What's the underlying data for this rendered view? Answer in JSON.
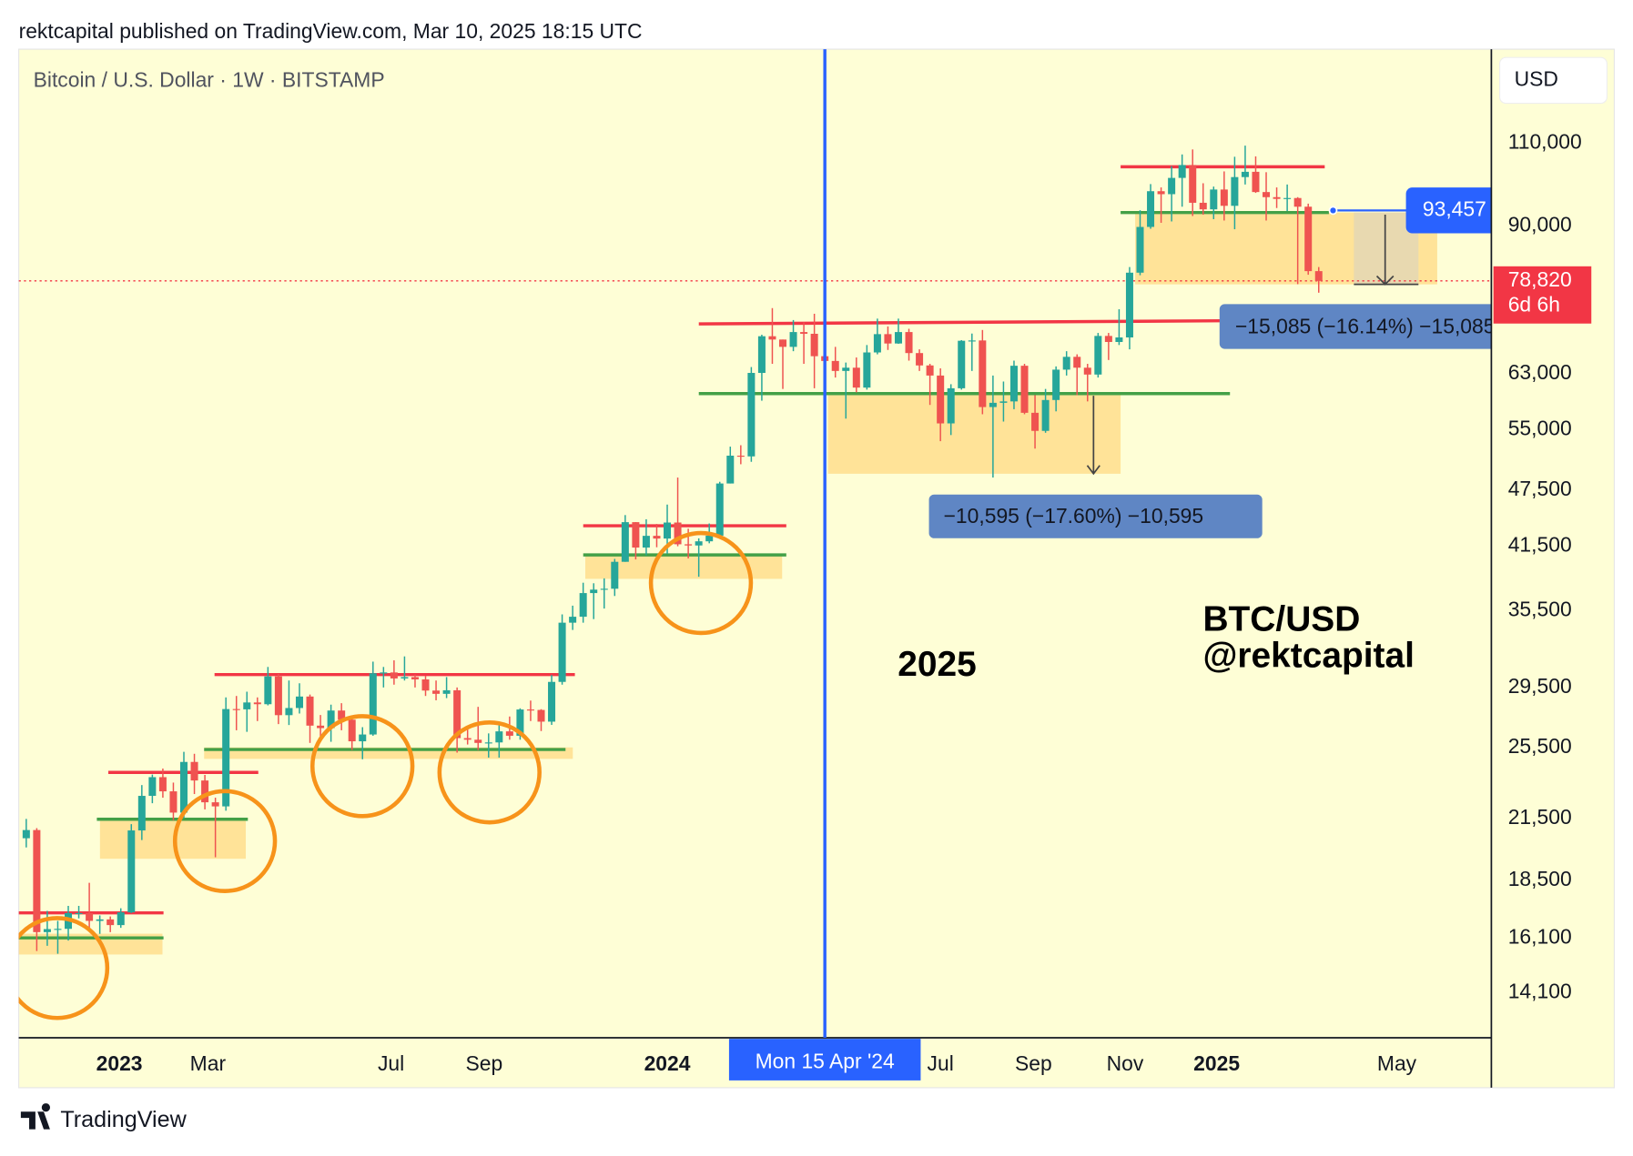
{
  "header": {
    "publisher": "rektcapital published on TradingView.com, Mar 10, 2025 18:15 UTC",
    "brand": "TradingView"
  },
  "chart_data": {
    "type": "candlestick",
    "symbol": "Bitcoin / U.S. Dollar · 1W · BITSTAMP",
    "currency": "USD",
    "log_scale": true,
    "up_color": "#26a69a",
    "down_color": "#ef5350",
    "x": [
      "2022-10-31",
      "2022-11-07",
      "2022-11-14",
      "2022-11-21",
      "2022-11-28",
      "2022-12-05",
      "2022-12-12",
      "2022-12-19",
      "2022-12-26",
      "2023-01-02",
      "2023-01-09",
      "2023-01-16",
      "2023-01-23",
      "2023-01-30",
      "2023-02-06",
      "2023-02-13",
      "2023-02-20",
      "2023-02-27",
      "2023-03-06",
      "2023-03-13",
      "2023-03-20",
      "2023-03-27",
      "2023-04-03",
      "2023-04-10",
      "2023-04-17",
      "2023-04-24",
      "2023-05-01",
      "2023-05-08",
      "2023-05-15",
      "2023-05-22",
      "2023-05-29",
      "2023-06-05",
      "2023-06-12",
      "2023-06-19",
      "2023-06-26",
      "2023-07-03",
      "2023-07-10",
      "2023-07-17",
      "2023-07-24",
      "2023-07-31",
      "2023-08-07",
      "2023-08-14",
      "2023-08-21",
      "2023-08-28",
      "2023-09-04",
      "2023-09-11",
      "2023-09-18",
      "2023-09-25",
      "2023-10-02",
      "2023-10-09",
      "2023-10-16",
      "2023-10-23",
      "2023-10-30",
      "2023-11-06",
      "2023-11-13",
      "2023-11-20",
      "2023-11-27",
      "2023-12-04",
      "2023-12-11",
      "2023-12-18",
      "2023-12-25",
      "2024-01-01",
      "2024-01-08",
      "2024-01-15",
      "2024-01-22",
      "2024-01-29",
      "2024-02-05",
      "2024-02-12",
      "2024-02-19",
      "2024-02-26",
      "2024-03-04",
      "2024-03-11",
      "2024-03-18",
      "2024-03-25",
      "2024-04-01",
      "2024-04-08",
      "2024-04-15",
      "2024-04-22",
      "2024-04-29",
      "2024-05-06",
      "2024-05-13",
      "2024-05-20",
      "2024-05-27",
      "2024-06-03",
      "2024-06-10",
      "2024-06-17",
      "2024-06-24",
      "2024-07-01",
      "2024-07-08",
      "2024-07-15",
      "2024-07-22",
      "2024-07-29",
      "2024-08-05",
      "2024-08-12",
      "2024-08-19",
      "2024-08-26",
      "2024-09-02",
      "2024-09-09",
      "2024-09-16",
      "2024-09-23",
      "2024-09-30",
      "2024-10-07",
      "2024-10-14",
      "2024-10-21",
      "2024-10-28",
      "2024-11-04",
      "2024-11-11",
      "2024-11-18",
      "2024-11-25",
      "2024-12-02",
      "2024-12-09",
      "2024-12-16",
      "2024-12-23",
      "2024-12-30",
      "2025-01-06",
      "2025-01-13",
      "2025-01-20",
      "2025-01-27",
      "2025-02-03",
      "2025-02-10",
      "2025-02-17",
      "2025-02-24",
      "2025-03-03",
      "2025-03-10"
    ],
    "open": [
      20490,
      20900,
      16330,
      16450,
      16460,
      17100,
      17100,
      16780,
      16840,
      16610,
      17130,
      20880,
      22700,
      23750,
      22950,
      21800,
      24640,
      23560,
      22350,
      22130,
      28000,
      27980,
      28450,
      28330,
      30300,
      27590,
      28070,
      28860,
      26900,
      26740,
      27900,
      27290,
      25900,
      26330,
      30530,
      30590,
      30150,
      30250,
      30080,
      29280,
      29050,
      29300,
      26100,
      26000,
      25800,
      25830,
      26530,
      26250,
      27970,
      27940,
      27160,
      29900,
      34500,
      35000,
      37060,
      37370,
      37450,
      39970,
      43990,
      41370,
      42560,
      42280,
      43950,
      41700,
      41580,
      42000,
      42580,
      48300,
      51660,
      51570,
      63100,
      68950,
      68400,
      67200,
      69650,
      69360,
      65700,
      64950,
      63400,
      63900,
      60900,
      66300,
      69300,
      67750,
      69650,
      66200,
      64250,
      62700,
      55850,
      60800,
      68200,
      68250,
      58100,
      58700,
      58900,
      64200,
      57300,
      54850,
      59100,
      63600,
      65600,
      63900,
      62850,
      69000,
      68000,
      68750,
      80400,
      89800,
      97900,
      97200,
      101100,
      104300,
      95200,
      93700,
      98300,
      94500,
      101300,
      102600,
      97700,
      96500,
      96100,
      96300,
      94300,
      80700
    ],
    "high": [
      21470,
      21000,
      17190,
      16780,
      17400,
      17400,
      18400,
      17000,
      16960,
      17300,
      21200,
      23300,
      23900,
      24250,
      23440,
      25250,
      25130,
      23880,
      22600,
      28800,
      28900,
      29200,
      28800,
      31000,
      30480,
      30000,
      29800,
      29000,
      27600,
      28300,
      28400,
      27400,
      26800,
      31400,
      31000,
      31500,
      31800,
      30440,
      30330,
      30000,
      30250,
      29500,
      26800,
      28150,
      26400,
      27000,
      27500,
      28050,
      28580,
      27990,
      30400,
      35200,
      35950,
      38000,
      37950,
      38400,
      40250,
      44750,
      44000,
      44300,
      43800,
      45900,
      49000,
      43300,
      42300,
      43850,
      48500,
      52800,
      52980,
      64000,
      69200,
      73800,
      68400,
      71700,
      71300,
      72800,
      66900,
      67200,
      64700,
      65500,
      67500,
      71950,
      70600,
      71950,
      70200,
      66800,
      64500,
      63800,
      61400,
      68300,
      69400,
      70000,
      62700,
      61800,
      65000,
      64500,
      59800,
      60700,
      64100,
      66500,
      66000,
      64500,
      69500,
      69500,
      73600,
      81500,
      93500,
      99600,
      98800,
      104000,
      107000,
      108300,
      99800,
      99000,
      102700,
      106400,
      109300,
      106500,
      102500,
      98800,
      99500,
      96500,
      95000,
      81500
    ],
    "low": [
      20040,
      15600,
      15800,
      15500,
      16000,
      16880,
      16500,
      16260,
      16330,
      16500,
      17100,
      20400,
      22300,
      22600,
      21400,
      21500,
      22800,
      21970,
      19570,
      21900,
      26600,
      26500,
      27200,
      28250,
      27000,
      26940,
      27700,
      25800,
      26150,
      25870,
      26600,
      25360,
      24800,
      26250,
      29500,
      29700,
      30000,
      29500,
      28900,
      28600,
      28750,
      25200,
      25700,
      25350,
      24900,
      24900,
      26000,
      26000,
      27200,
      26550,
      26950,
      29700,
      33900,
      34500,
      34800,
      35700,
      36800,
      39970,
      40200,
      40600,
      41400,
      40750,
      41500,
      40300,
      38550,
      41800,
      42300,
      48300,
      50600,
      50900,
      59000,
      64500,
      60700,
      66500,
      64500,
      60800,
      59600,
      62400,
      56500,
      60200,
      60600,
      66000,
      66700,
      67700,
      65000,
      63400,
      58400,
      53500,
      54300,
      60600,
      63400,
      57100,
      49000,
      56100,
      57800,
      57100,
      52550,
      54600,
      57500,
      62700,
      59800,
      58900,
      62400,
      65100,
      67500,
      66800,
      79900,
      89400,
      90700,
      91000,
      94300,
      92200,
      92500,
      91500,
      91200,
      89300,
      99500,
      97500,
      91200,
      94000,
      93300,
      78200,
      80000,
      76600
    ],
    "close": [
      20900,
      16330,
      16450,
      16460,
      17100,
      17100,
      16780,
      16840,
      16610,
      17130,
      20880,
      22700,
      23750,
      22950,
      21800,
      24640,
      23560,
      22350,
      22130,
      28000,
      27980,
      28450,
      28330,
      30300,
      27590,
      28070,
      28860,
      26900,
      26740,
      27900,
      27290,
      25900,
      26330,
      30530,
      30590,
      30150,
      30250,
      30080,
      29280,
      29050,
      29300,
      26100,
      26000,
      25800,
      25830,
      26530,
      26250,
      27970,
      27940,
      27160,
      29900,
      34500,
      35000,
      37060,
      37370,
      37450,
      39970,
      43990,
      41370,
      42560,
      42280,
      43950,
      41700,
      41580,
      42000,
      42580,
      48300,
      51660,
      51570,
      63100,
      68950,
      68400,
      67200,
      69650,
      69360,
      65700,
      64950,
      63400,
      63900,
      60900,
      66300,
      69300,
      67750,
      69650,
      66200,
      64250,
      62700,
      55850,
      60800,
      68200,
      68250,
      58100,
      58700,
      58900,
      64200,
      57300,
      54850,
      59100,
      63600,
      65600,
      63900,
      62850,
      69000,
      68000,
      68750,
      80400,
      89800,
      97900,
      97200,
      101100,
      104300,
      95200,
      93700,
      98300,
      94500,
      101300,
      102600,
      97700,
      96500,
      96100,
      96300,
      94300,
      80700,
      78820
    ],
    "xlim": [
      "2022-10-26",
      "2025-07-03"
    ],
    "xticks": [
      {
        "value": "2023-01-01",
        "label": "2023"
      },
      {
        "value": "2023-03-01",
        "label": "Mar"
      },
      {
        "value": "2023-07-01",
        "label": "Jul"
      },
      {
        "value": "2023-09-01",
        "label": "Sep"
      },
      {
        "value": "2024-01-01",
        "label": "2024"
      },
      {
        "value": "2024-07-01",
        "label": "Jul"
      },
      {
        "value": "2024-09-01",
        "label": "Sep"
      },
      {
        "value": "2024-11-01",
        "label": "Nov"
      },
      {
        "value": "2025-01-01",
        "label": "2025"
      },
      {
        "value": "2025-05-01",
        "label": "May"
      }
    ],
    "ylim": [
      12650,
      138000
    ],
    "yticks": [
      {
        "value": 110000,
        "label": "110,000"
      },
      {
        "value": 90000,
        "label": "90,000"
      },
      {
        "value": 63000,
        "label": "63,000"
      },
      {
        "value": 55000,
        "label": "55,000"
      },
      {
        "value": 47500,
        "label": "47,500"
      },
      {
        "value": 41500,
        "label": "41,500"
      },
      {
        "value": 35500,
        "label": "35,500"
      },
      {
        "value": 29500,
        "label": "29,500"
      },
      {
        "value": 25500,
        "label": "25,500"
      },
      {
        "value": 21500,
        "label": "21,500"
      },
      {
        "value": 18500,
        "label": "18,500"
      },
      {
        "value": 16100,
        "label": "16,100"
      },
      {
        "value": 14100,
        "label": "14,100"
      }
    ],
    "crosshair": {
      "x": "2024-04-15",
      "label": "Mon 15 Apr '24"
    },
    "marker_price": {
      "value": 93457,
      "label": "93,457"
    },
    "last_price": {
      "value": 78820,
      "label": "78,820",
      "countdown": "6d 6h"
    },
    "measurements": [
      "−15,085 (−16.14%) −15,085",
      "−10,595 (−17.60%) −10,595"
    ],
    "annotations": [
      "2025",
      "BTC/USD",
      "@rektcapital"
    ]
  }
}
